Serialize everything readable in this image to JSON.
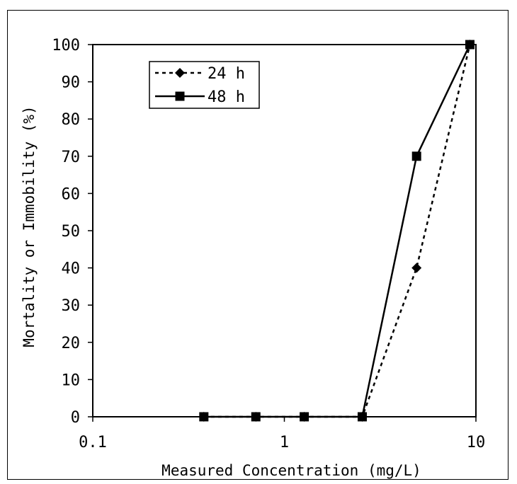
{
  "chart_data": {
    "type": "line",
    "x_scale": "log",
    "xlim": [
      0.1,
      10
    ],
    "ylim": [
      0,
      100
    ],
    "xlabel": "Measured Concentration (mg/L)",
    "ylabel": "Mortality or Immobility (%)",
    "x_ticks": [
      {
        "value": 0.1,
        "label": "0.1"
      },
      {
        "value": 1,
        "label": "1"
      },
      {
        "value": 10,
        "label": "10"
      }
    ],
    "y_ticks": [
      {
        "value": 0,
        "label": "0"
      },
      {
        "value": 10,
        "label": "10"
      },
      {
        "value": 20,
        "label": "20"
      },
      {
        "value": 30,
        "label": "30"
      },
      {
        "value": 40,
        "label": "40"
      },
      {
        "value": 50,
        "label": "50"
      },
      {
        "value": 60,
        "label": "60"
      },
      {
        "value": 70,
        "label": "70"
      },
      {
        "value": 80,
        "label": "80"
      },
      {
        "value": 90,
        "label": "90"
      },
      {
        "value": 100,
        "label": "100"
      }
    ],
    "grid": false,
    "legend_position": "top-left",
    "series": [
      {
        "name": "24 h",
        "marker": "diamond",
        "line_style": "dotted",
        "color": "#000000",
        "x": [
          0.38,
          0.71,
          1.27,
          2.55,
          4.9,
          9.3
        ],
        "y": [
          0,
          0,
          0,
          0,
          40,
          100
        ]
      },
      {
        "name": "48 h",
        "marker": "square",
        "line_style": "solid",
        "color": "#000000",
        "x": [
          0.38,
          0.71,
          1.27,
          2.55,
          4.9,
          9.3
        ],
        "y": [
          0,
          0,
          0,
          0,
          70,
          100
        ]
      }
    ]
  }
}
